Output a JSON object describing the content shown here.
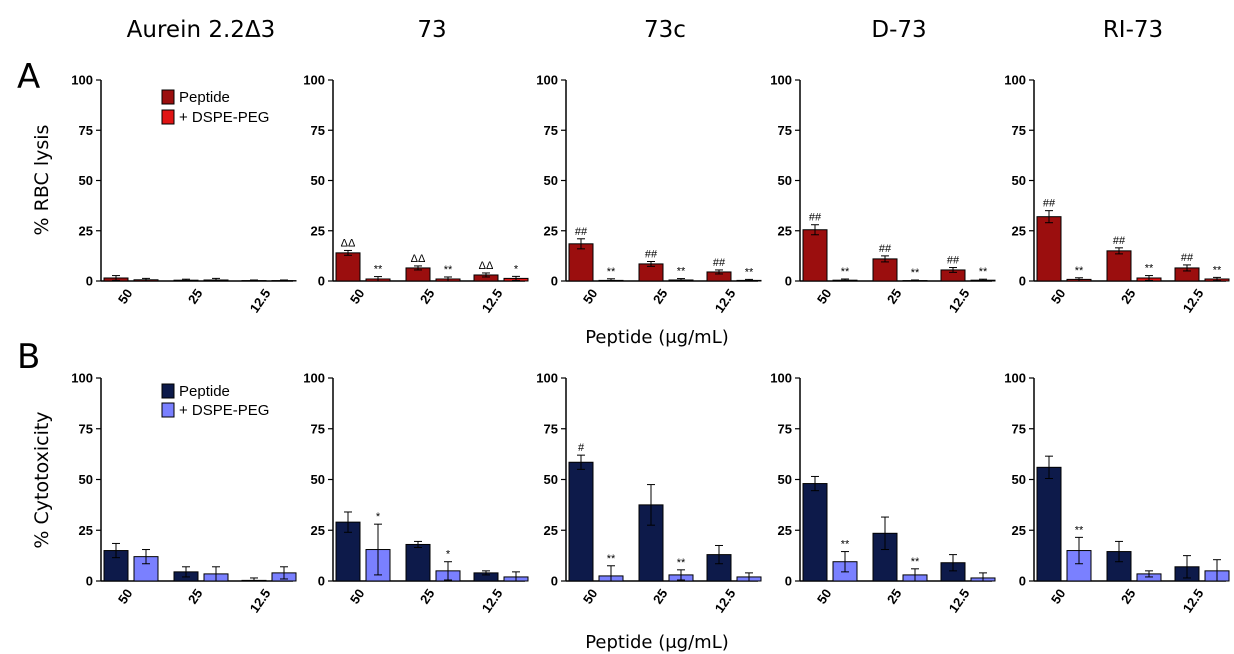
{
  "columns": [
    "Aurein 2.2Δ3",
    "73",
    "73c",
    "D-73",
    "RI-73"
  ],
  "rows": [
    {
      "letter": "A",
      "ylabel": "% RBC lysis",
      "xlabel": "Peptide (μg/mL)",
      "legend": [
        "Peptide",
        "+ DSPE-PEG"
      ],
      "colors": [
        "#9b0e0e",
        "#e01414"
      ]
    },
    {
      "letter": "B",
      "ylabel": "% Cytotoxicity",
      "xlabel": "Peptide (μg/mL)",
      "legend": [
        "Peptide",
        "+ DSPE-PEG"
      ],
      "colors": [
        "#0d1a4a",
        "#7a80ff"
      ]
    }
  ],
  "chart_data": [
    {
      "type": "bar",
      "title": "Aurein 2.2Δ3",
      "panel": "A",
      "ylabel": "% RBC lysis",
      "ylim": [
        0,
        100
      ],
      "yticks": [
        "0",
        "25",
        "50",
        "75",
        "100"
      ],
      "categories": [
        "50",
        "25",
        "12.5"
      ],
      "series": [
        {
          "name": "Peptide",
          "values": [
            1.5,
            0.4,
            0.2
          ],
          "errors": [
            1.2,
            0.5,
            0.3
          ],
          "sig": [
            "",
            "",
            ""
          ]
        },
        {
          "name": "+ DSPE-PEG",
          "values": [
            0.6,
            0.5,
            0.2
          ],
          "errors": [
            0.7,
            0.8,
            0.3
          ],
          "sig": [
            "",
            "",
            ""
          ]
        }
      ]
    },
    {
      "type": "bar",
      "title": "73",
      "panel": "A",
      "ylabel": "% RBC lysis",
      "ylim": [
        0,
        100
      ],
      "yticks": [
        "0",
        "25",
        "50",
        "75",
        "100"
      ],
      "categories": [
        "50",
        "25",
        "12.5"
      ],
      "series": [
        {
          "name": "Peptide",
          "values": [
            14,
            6.5,
            3
          ],
          "errors": [
            1.2,
            1.0,
            1.0
          ],
          "sig": [
            "ΔΔ",
            "ΔΔ",
            "ΔΔ"
          ]
        },
        {
          "name": "+ DSPE-PEG",
          "values": [
            1,
            1,
            1.3
          ],
          "errors": [
            1.2,
            1.0,
            1.0
          ],
          "sig": [
            "**",
            "**",
            "*"
          ]
        }
      ]
    },
    {
      "type": "bar",
      "title": "73c",
      "panel": "A",
      "ylabel": "% RBC lysis",
      "ylim": [
        0,
        100
      ],
      "yticks": [
        "0",
        "25",
        "50",
        "75",
        "100"
      ],
      "categories": [
        "50",
        "25",
        "12.5"
      ],
      "series": [
        {
          "name": "Peptide",
          "values": [
            18.5,
            8.5,
            4.5
          ],
          "errors": [
            2.5,
            1.2,
            1.0
          ],
          "sig": [
            "##",
            "##",
            "##"
          ]
        },
        {
          "name": "+ DSPE-PEG",
          "values": [
            0.3,
            0.5,
            0.3
          ],
          "errors": [
            0.8,
            0.7,
            0.5
          ],
          "sig": [
            "**",
            "**",
            "**"
          ]
        }
      ]
    },
    {
      "type": "bar",
      "title": "D-73",
      "panel": "A",
      "ylabel": "% RBC lysis",
      "ylim": [
        0,
        100
      ],
      "yticks": [
        "0",
        "25",
        "50",
        "75",
        "100"
      ],
      "categories": [
        "50",
        "25",
        "12.5"
      ],
      "series": [
        {
          "name": "Peptide",
          "values": [
            25.5,
            11,
            5.5
          ],
          "errors": [
            2.5,
            1.5,
            1.2
          ],
          "sig": [
            "##",
            "##",
            "##"
          ]
        },
        {
          "name": "+ DSPE-PEG",
          "values": [
            0.4,
            0.2,
            0.4
          ],
          "errors": [
            0.6,
            0.3,
            0.5
          ],
          "sig": [
            "**",
            "**",
            "**"
          ]
        }
      ]
    },
    {
      "type": "bar",
      "title": "RI-73",
      "panel": "A",
      "ylabel": "% RBC lysis",
      "ylim": [
        0,
        100
      ],
      "yticks": [
        "0",
        "25",
        "50",
        "75",
        "100"
      ],
      "categories": [
        "50",
        "25",
        "12.5"
      ],
      "series": [
        {
          "name": "Peptide",
          "values": [
            32,
            15,
            6.5
          ],
          "errors": [
            3,
            1.5,
            1.5
          ],
          "sig": [
            "##",
            "##",
            "##"
          ]
        },
        {
          "name": "+ DSPE-PEG",
          "values": [
            0.8,
            1.5,
            1
          ],
          "errors": [
            0.8,
            1.2,
            0.8
          ],
          "sig": [
            "**",
            "**",
            "**"
          ]
        }
      ]
    },
    {
      "type": "bar",
      "title": "Aurein 2.2Δ3",
      "panel": "B",
      "ylabel": "% Cytotoxicity",
      "ylim": [
        0,
        100
      ],
      "yticks": [
        "0",
        "25",
        "50",
        "75",
        "100"
      ],
      "categories": [
        "50",
        "25",
        "12.5"
      ],
      "series": [
        {
          "name": "Peptide",
          "values": [
            15,
            4.5,
            0.3
          ],
          "errors": [
            3.5,
            2.5,
            1.2
          ],
          "sig": [
            "",
            "",
            ""
          ]
        },
        {
          "name": "+ DSPE-PEG",
          "values": [
            12,
            3.5,
            4
          ],
          "errors": [
            3.5,
            3.5,
            3
          ],
          "sig": [
            "",
            "",
            ""
          ]
        }
      ]
    },
    {
      "type": "bar",
      "title": "73",
      "panel": "B",
      "ylabel": "% Cytotoxicity",
      "ylim": [
        0,
        100
      ],
      "yticks": [
        "0",
        "25",
        "50",
        "75",
        "100"
      ],
      "categories": [
        "50",
        "25",
        "12.5"
      ],
      "series": [
        {
          "name": "Peptide",
          "values": [
            29,
            18,
            4
          ],
          "errors": [
            5,
            1.5,
            1
          ],
          "sig": [
            "",
            "",
            ""
          ]
        },
        {
          "name": "+ DSPE-PEG",
          "values": [
            15.5,
            5,
            2
          ],
          "errors": [
            12.5,
            4.5,
            2.5
          ],
          "sig": [
            "*",
            "*",
            ""
          ]
        }
      ]
    },
    {
      "type": "bar",
      "title": "73c",
      "panel": "B",
      "ylabel": "% Cytotoxicity",
      "ylim": [
        0,
        100
      ],
      "yticks": [
        "0",
        "25",
        "50",
        "75",
        "100"
      ],
      "categories": [
        "50",
        "25",
        "12.5"
      ],
      "series": [
        {
          "name": "Peptide",
          "values": [
            58.5,
            37.5,
            13
          ],
          "errors": [
            3.5,
            10,
            4.5
          ],
          "sig": [
            "#",
            "",
            ""
          ]
        },
        {
          "name": "+ DSPE-PEG",
          "values": [
            2.5,
            3,
            2
          ],
          "errors": [
            5,
            2.5,
            2
          ],
          "sig": [
            "**",
            "**",
            ""
          ]
        }
      ]
    },
    {
      "type": "bar",
      "title": "D-73",
      "panel": "B",
      "ylabel": "% Cytotoxicity",
      "ylim": [
        0,
        100
      ],
      "yticks": [
        "0",
        "25",
        "50",
        "75",
        "100"
      ],
      "categories": [
        "50",
        "25",
        "12.5"
      ],
      "series": [
        {
          "name": "Peptide",
          "values": [
            48,
            23.5,
            9
          ],
          "errors": [
            3.5,
            8,
            4
          ],
          "sig": [
            "",
            "",
            ""
          ]
        },
        {
          "name": "+ DSPE-PEG",
          "values": [
            9.5,
            3,
            1.5
          ],
          "errors": [
            5,
            3,
            2.5
          ],
          "sig": [
            "**",
            "**",
            ""
          ]
        }
      ]
    },
    {
      "type": "bar",
      "title": "RI-73",
      "panel": "B",
      "ylabel": "% Cytotoxicity",
      "ylim": [
        0,
        100
      ],
      "yticks": [
        "0",
        "25",
        "50",
        "75",
        "100"
      ],
      "categories": [
        "50",
        "25",
        "12.5"
      ],
      "series": [
        {
          "name": "Peptide",
          "values": [
            56,
            14.5,
            7
          ],
          "errors": [
            5.5,
            5,
            5.5
          ],
          "sig": [
            "",
            "",
            ""
          ]
        },
        {
          "name": "+ DSPE-PEG",
          "values": [
            15,
            3.5,
            5
          ],
          "errors": [
            6.5,
            1.5,
            5.5
          ],
          "sig": [
            "**",
            "",
            ""
          ]
        }
      ]
    }
  ]
}
